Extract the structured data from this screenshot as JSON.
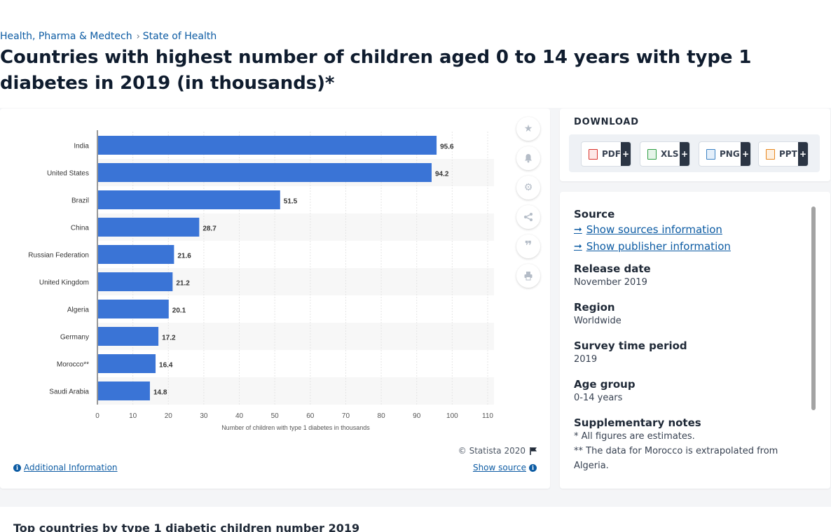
{
  "breadcrumb": {
    "category": "Health, Pharma & Medtech",
    "topic": "State of Health",
    "separator": "›"
  },
  "page_title": "Countries with highest number of children aged 0 to 14 years with type 1 diabetes in 2019 (in thousands)*",
  "colors": {
    "bar": "#3a74d6",
    "link": "#0c5ba3",
    "accent_dark": "#2b3544"
  },
  "toolbar": {
    "icons": [
      "star-icon",
      "bell-icon",
      "gear-icon",
      "share-icon",
      "quote-icon",
      "print-icon"
    ]
  },
  "chart_footer": {
    "copyright": "© Statista 2020",
    "additional_info": "Additional Information",
    "show_source": "Show source"
  },
  "download": {
    "title": "DOWNLOAD",
    "formats": [
      {
        "label": "PDF",
        "color": "#d9322c"
      },
      {
        "label": "XLS",
        "color": "#2e9e43"
      },
      {
        "label": "PNG",
        "color": "#3b82c4"
      },
      {
        "label": "PPT",
        "color": "#e8871e"
      }
    ],
    "plus": "+"
  },
  "source_panel": {
    "source_heading": "Source",
    "show_sources": "Show sources information",
    "show_publisher": "Show publisher information",
    "release_date_label": "Release date",
    "release_date": "November 2019",
    "region_label": "Region",
    "region": "Worldwide",
    "survey_label": "Survey time period",
    "survey": "2019",
    "age_label": "Age group",
    "age": "0-14 years",
    "notes_label": "Supplementary notes",
    "note1": "* All figures are estimates.",
    "note2": "** The data for Morocco is extrapolated from Algeria."
  },
  "related_title": "Top countries by type 1 diabetic children number 2019",
  "chart_data": {
    "type": "bar",
    "orientation": "horizontal",
    "categories": [
      "India",
      "United States",
      "Brazil",
      "China",
      "Russian Federation",
      "United Kingdom",
      "Algeria",
      "Germany",
      "Morocco**",
      "Saudi Arabia"
    ],
    "values": [
      95.6,
      94.2,
      51.5,
      28.7,
      21.6,
      21.2,
      20.1,
      17.2,
      16.4,
      14.8
    ],
    "value_labels": [
      "95.6",
      "94.2",
      "51.5",
      "28.7",
      "21.6",
      "21.2",
      "20.1",
      "17.2",
      "16.4",
      "14.8"
    ],
    "xlim": [
      0,
      110
    ],
    "xticks": [
      "0",
      "10",
      "20",
      "30",
      "40",
      "50",
      "60",
      "70",
      "80",
      "90",
      "100",
      "110"
    ],
    "xlabel": "Number of children with type 1 diabetes in thousands",
    "grid": true
  }
}
